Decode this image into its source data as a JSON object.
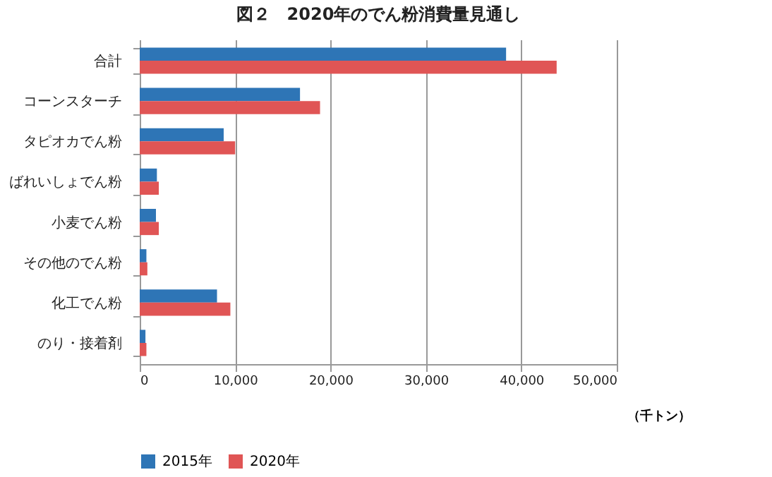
{
  "chart_data": {
    "type": "bar",
    "orientation": "horizontal",
    "title": "図２　2020年のでん粉消費量見通し",
    "xlabel": "（千トン）",
    "categories": [
      "合計",
      "コーンスターチ",
      "タピオカでん粉",
      "ばれいしょでん粉",
      "小麦でん粉",
      "その他のでん粉",
      "化工でん粉",
      "のり・接着剤"
    ],
    "series": [
      {
        "name": "2015年",
        "color": "#2e75b6",
        "values": [
          38400,
          16800,
          8800,
          1800,
          1700,
          700,
          8100,
          600
        ]
      },
      {
        "name": "2020年",
        "color": "#e05555",
        "values": [
          43700,
          18900,
          10000,
          2000,
          2000,
          800,
          9500,
          700
        ]
      }
    ],
    "xlim": [
      0,
      50000
    ],
    "xticks": [
      0,
      {
        "value": 10000,
        "label": "10,000"
      },
      {
        "value": 20000,
        "label": "20,000"
      },
      {
        "value": 30000,
        "label": "30,000"
      },
      {
        "value": 40000,
        "label": "40,000"
      },
      {
        "value": 50000,
        "label": "50,000"
      }
    ],
    "grid": "x",
    "legend": "bottom"
  }
}
